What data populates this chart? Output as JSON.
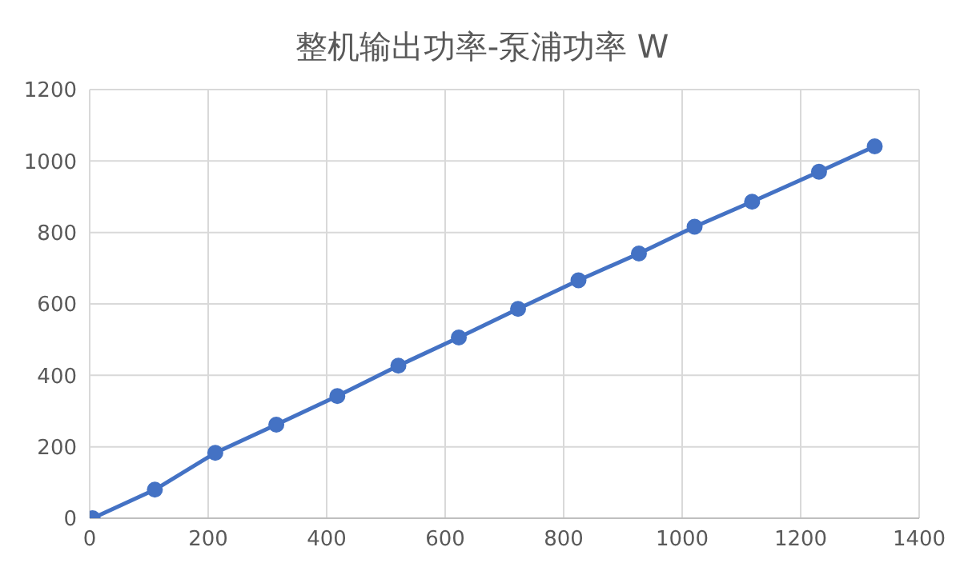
{
  "chart_data": {
    "type": "line",
    "title": "整机输出功率-泵浦功率 W",
    "x": [
      5,
      110,
      212,
      315,
      418,
      521,
      623,
      723,
      825,
      927,
      1021,
      1118,
      1231,
      1325
    ],
    "series": [
      {
        "color": "#4472c4",
        "values": [
          0,
          80,
          183,
          262,
          342,
          427,
          506,
          586,
          666,
          741,
          816,
          886,
          970,
          1041
        ]
      }
    ],
    "xlim": [
      0,
      1400
    ],
    "xticks": [
      0,
      200,
      400,
      600,
      800,
      1000,
      1200,
      1400
    ],
    "ylim": [
      0,
      1200
    ],
    "yticks": [
      0,
      200,
      400,
      600,
      800,
      1000,
      1200
    ],
    "grid": true,
    "marker": "circle",
    "line_style": "solid",
    "legend": false
  }
}
